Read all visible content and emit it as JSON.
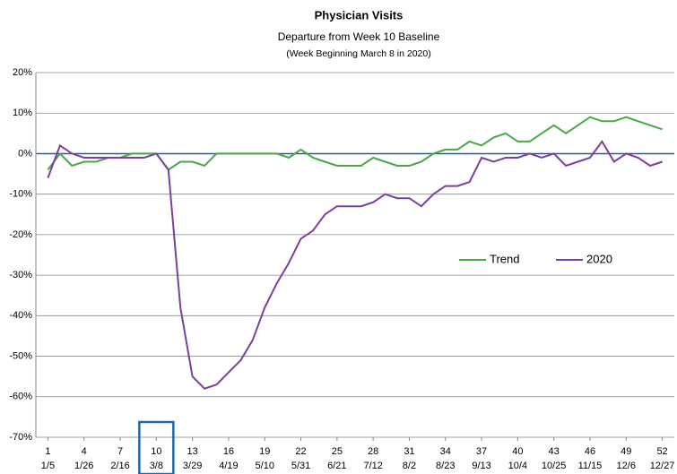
{
  "chart_data": {
    "type": "line",
    "title": "Physician Visits",
    "subtitle": "Departure from Week 10 Baseline",
    "note": "(Week Beginning March 8 in 2020)",
    "x": [
      1,
      2,
      3,
      4,
      5,
      6,
      7,
      8,
      9,
      10,
      11,
      12,
      13,
      14,
      15,
      16,
      17,
      18,
      19,
      20,
      21,
      22,
      23,
      24,
      25,
      26,
      27,
      28,
      29,
      30,
      31,
      32,
      33,
      34,
      35,
      36,
      37,
      38,
      39,
      40,
      41,
      42,
      43,
      44,
      45,
      46,
      47,
      48,
      49,
      50,
      51,
      52
    ],
    "xlim": [
      0,
      53
    ],
    "xticks": [
      1,
      4,
      7,
      10,
      13,
      16,
      19,
      22,
      25,
      28,
      31,
      34,
      37,
      40,
      43,
      46,
      49,
      52
    ],
    "xtick_dates": [
      "1/5",
      "1/26",
      "2/16",
      "3/8",
      "3/29",
      "4/19",
      "5/10",
      "5/31",
      "6/21",
      "7/12",
      "8/2",
      "8/23",
      "9/13",
      "10/4",
      "10/25",
      "11/15",
      "12/6",
      "12/27"
    ],
    "highlight_x": 10,
    "ylim": [
      -70,
      20
    ],
    "yticks": [
      {
        "value": -70,
        "label": "-70%"
      },
      {
        "value": -60,
        "label": "-60%"
      },
      {
        "value": -50,
        "label": "-50%"
      },
      {
        "value": -40,
        "label": "-40%"
      },
      {
        "value": -30,
        "label": "-30%"
      },
      {
        "value": -20,
        "label": "-20%"
      },
      {
        "value": -10,
        "label": "-10%"
      },
      {
        "value": 0,
        "label": "0%"
      },
      {
        "value": 10,
        "label": "10%"
      },
      {
        "value": 20,
        "label": "20%"
      }
    ],
    "grid": true,
    "legend": "center-right",
    "series": [
      {
        "name": "Trend",
        "color": "#4aa843",
        "values": [
          -4,
          0,
          -3,
          -2,
          -2,
          -1,
          -1,
          0,
          0,
          0,
          -4,
          -2,
          -2,
          -3,
          0,
          0,
          0,
          0,
          0,
          0,
          -1,
          1,
          -1,
          -2,
          -3,
          -3,
          -3,
          -1,
          -2,
          -3,
          -3,
          -2,
          0,
          1,
          1,
          3,
          2,
          4,
          5,
          3,
          3,
          5,
          7,
          5,
          7,
          9,
          8,
          8,
          9,
          8,
          7,
          6
        ]
      },
      {
        "name": "2020",
        "color": "#7b3f9e",
        "values": [
          -6,
          2,
          0,
          -1,
          -1,
          -1,
          -1,
          -1,
          -1,
          0,
          -4,
          -38,
          -55,
          -58,
          -57,
          -54,
          -51,
          -46,
          -38,
          -32,
          -27,
          -21,
          -19,
          -15,
          -13,
          -13,
          -13,
          -12,
          -10,
          -11,
          -11,
          -13,
          -10,
          -8,
          -8,
          -7,
          -1,
          -2,
          -1,
          -1,
          0,
          -1,
          0,
          -3,
          -2,
          -1,
          3,
          -2,
          0,
          -1,
          -3,
          -2
        ]
      }
    ]
  }
}
